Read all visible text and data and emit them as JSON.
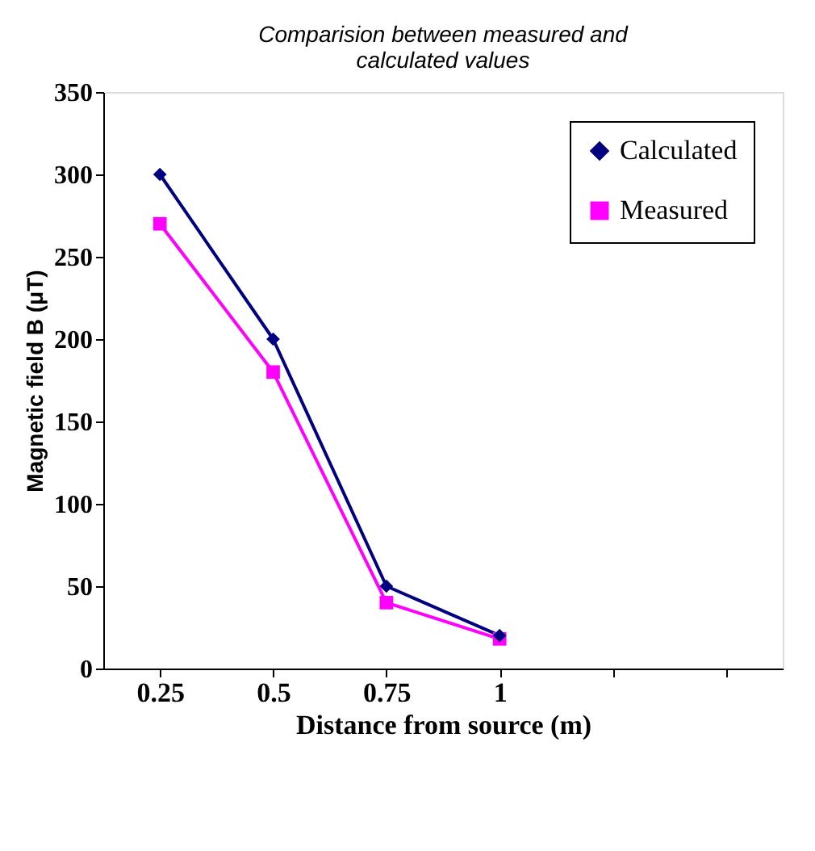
{
  "chart_data": {
    "type": "line",
    "title": "Comparision between measured and calculated values",
    "xlabel": "Distance from source (m)",
    "ylabel": "Magnetic field  B (μT)",
    "categories": [
      "0.25",
      "0.5",
      "0.75",
      "1",
      null,
      null
    ],
    "series": [
      {
        "name": "Calculated",
        "color": "#000080",
        "marker": "diamond",
        "values": [
          300,
          200,
          50,
          20,
          null,
          null
        ]
      },
      {
        "name": "Measured",
        "color": "#ff00ff",
        "marker": "square",
        "values": [
          270,
          180,
          40,
          18,
          null,
          null
        ]
      }
    ],
    "ylim": [
      0,
      350
    ],
    "yticks": [
      0,
      50,
      100,
      150,
      200,
      250,
      300,
      350
    ],
    "grid": false,
    "legend": "top right",
    "line_style": "solid"
  }
}
